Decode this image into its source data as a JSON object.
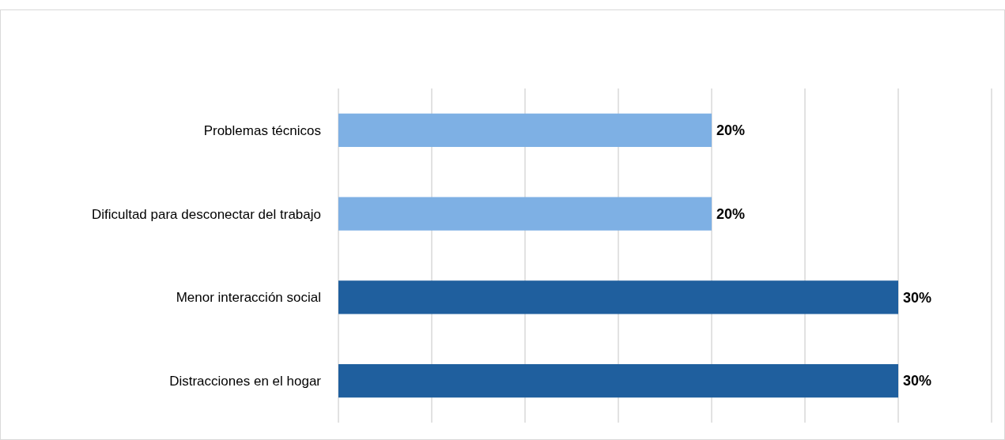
{
  "chart_data": {
    "type": "bar",
    "orientation": "horizontal",
    "categories": [
      "Problemas técnicos",
      "Dificultad para desconectar del trabajo",
      "Menor interacción social",
      "Distracciones en el hogar"
    ],
    "values": [
      20,
      20,
      30,
      30
    ],
    "colors": [
      "#7eb0e4",
      "#7eb0e4",
      "#1f5f9e",
      "#1f5f9e"
    ],
    "value_labels": [
      "20%",
      "20%",
      "30%",
      "30%"
    ],
    "xlim": [
      0,
      35
    ],
    "xticks": [
      {
        "value": 0,
        "label": null
      },
      {
        "value": 5,
        "label": null
      },
      {
        "value": 10,
        "label": null
      },
      {
        "value": 15,
        "label": null
      },
      {
        "value": 20,
        "label": null
      },
      {
        "value": 25,
        "label": null
      },
      {
        "value": 30,
        "label": null
      },
      {
        "value": 35,
        "label": null
      }
    ],
    "grid": "x",
    "tick_labels": "y"
  }
}
